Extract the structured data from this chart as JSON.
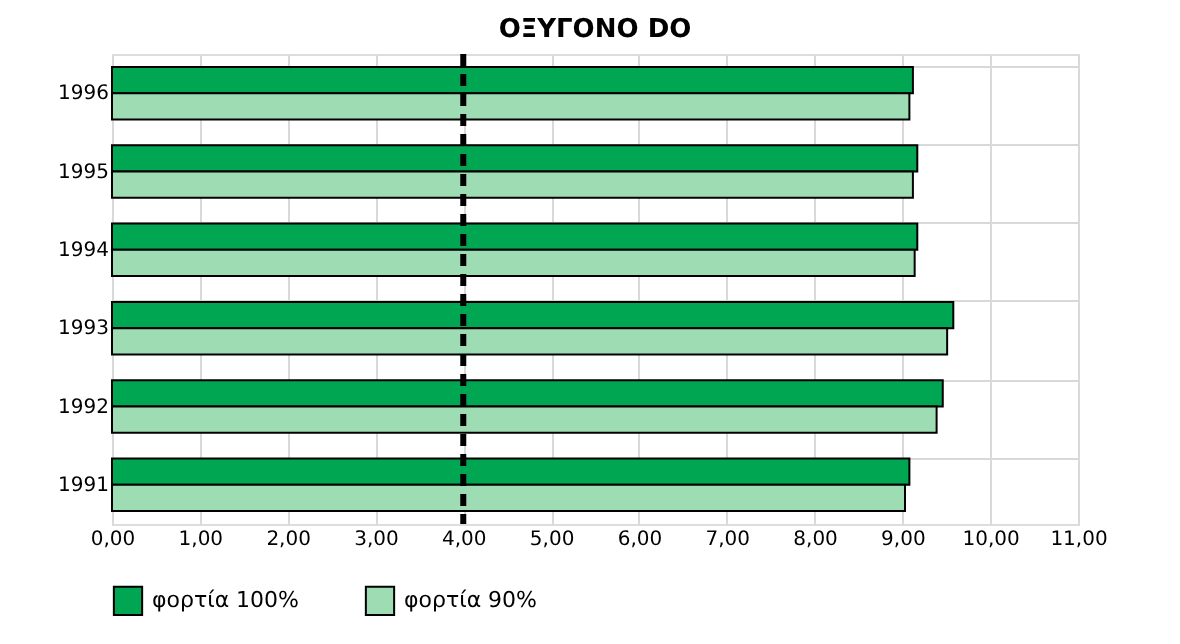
{
  "chart_data": {
    "type": "bar",
    "orientation": "horizontal",
    "title": "ΟΞΥΓΟΝΟ DO",
    "categories": [
      "1996",
      "1995",
      "1994",
      "1993",
      "1992",
      "1991"
    ],
    "series": [
      {
        "name": "φορτία 100%",
        "color": "#00a651",
        "values": [
          9.12,
          9.17,
          9.17,
          9.58,
          9.46,
          9.08
        ]
      },
      {
        "name": "φορτία 90%",
        "color": "#9edcb4",
        "values": [
          9.08,
          9.12,
          9.14,
          9.51,
          9.39,
          9.03
        ]
      }
    ],
    "xlim": [
      0,
      11
    ],
    "xticks": [
      {
        "value": 0,
        "label": "0,00"
      },
      {
        "value": 1,
        "label": "1,00"
      },
      {
        "value": 2,
        "label": "2,00"
      },
      {
        "value": 3,
        "label": "3,00"
      },
      {
        "value": 4,
        "label": "4,00"
      },
      {
        "value": 5,
        "label": "5,00"
      },
      {
        "value": 6,
        "label": "6,00"
      },
      {
        "value": 7,
        "label": "7,00"
      },
      {
        "value": 8,
        "label": "8,00"
      },
      {
        "value": 9,
        "label": "9,00"
      },
      {
        "value": 10,
        "label": "10,00"
      },
      {
        "value": 11,
        "label": "11,00"
      }
    ],
    "ref_lines": [
      {
        "axis": "x",
        "value": 4,
        "color": "#000000",
        "line_style": "dashed"
      }
    ],
    "grid": true,
    "legend": "bottom"
  }
}
